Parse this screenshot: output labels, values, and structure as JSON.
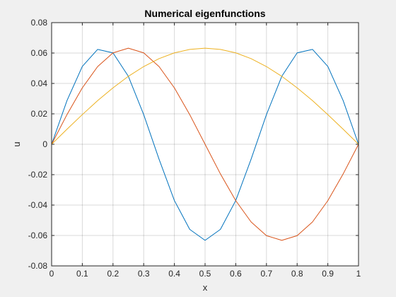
{
  "chart_data": {
    "type": "line",
    "title": "Numerical eigenfunctions",
    "xlabel": "x",
    "ylabel": "u",
    "xlim": [
      0,
      1
    ],
    "ylim": [
      -0.08,
      0.08
    ],
    "grid": true,
    "legend": "none",
    "xticks": [
      "0",
      "0.1",
      "0.2",
      "0.3",
      "0.4",
      "0.5",
      "0.6",
      "0.7",
      "0.8",
      "0.9",
      "1"
    ],
    "yticks": [
      "-0.08",
      "-0.06",
      "-0.04",
      "-0.02",
      "0",
      "0.02",
      "0.04",
      "0.06",
      "0.08"
    ],
    "x": [
      0,
      0.05,
      0.1,
      0.15,
      0.2,
      0.25,
      0.3,
      0.35,
      0.4,
      0.45,
      0.5,
      0.55,
      0.6,
      0.65,
      0.7,
      0.75,
      0.8,
      0.85,
      0.9,
      0.95,
      1.0
    ],
    "series": [
      {
        "color": "#0072bd",
        "values": [
          0,
          0.0287,
          0.0512,
          0.0624,
          0.0601,
          0.0447,
          0.0195,
          -0.0098,
          -0.037,
          -0.056,
          -0.0632,
          -0.056,
          -0.037,
          -0.0098,
          0.0195,
          0.0447,
          0.0601,
          0.0624,
          0.0512,
          0.0287,
          0
        ]
      },
      {
        "color": "#d95319",
        "values": [
          0,
          0.0195,
          0.0371,
          0.0511,
          0.0601,
          0.0632,
          0.0601,
          0.0511,
          0.0371,
          0.0195,
          0,
          -0.0195,
          -0.0371,
          -0.0511,
          -0.0601,
          -0.0632,
          -0.0601,
          -0.0511,
          -0.0371,
          -0.0195,
          0
        ]
      },
      {
        "color": "#edb120",
        "values": [
          0,
          0.0099,
          0.0195,
          0.0287,
          0.0371,
          0.0447,
          0.0511,
          0.0563,
          0.0601,
          0.0624,
          0.0632,
          0.0624,
          0.0601,
          0.0563,
          0.0511,
          0.0447,
          0.0371,
          0.0287,
          0.0195,
          0.0099,
          0
        ]
      }
    ]
  }
}
